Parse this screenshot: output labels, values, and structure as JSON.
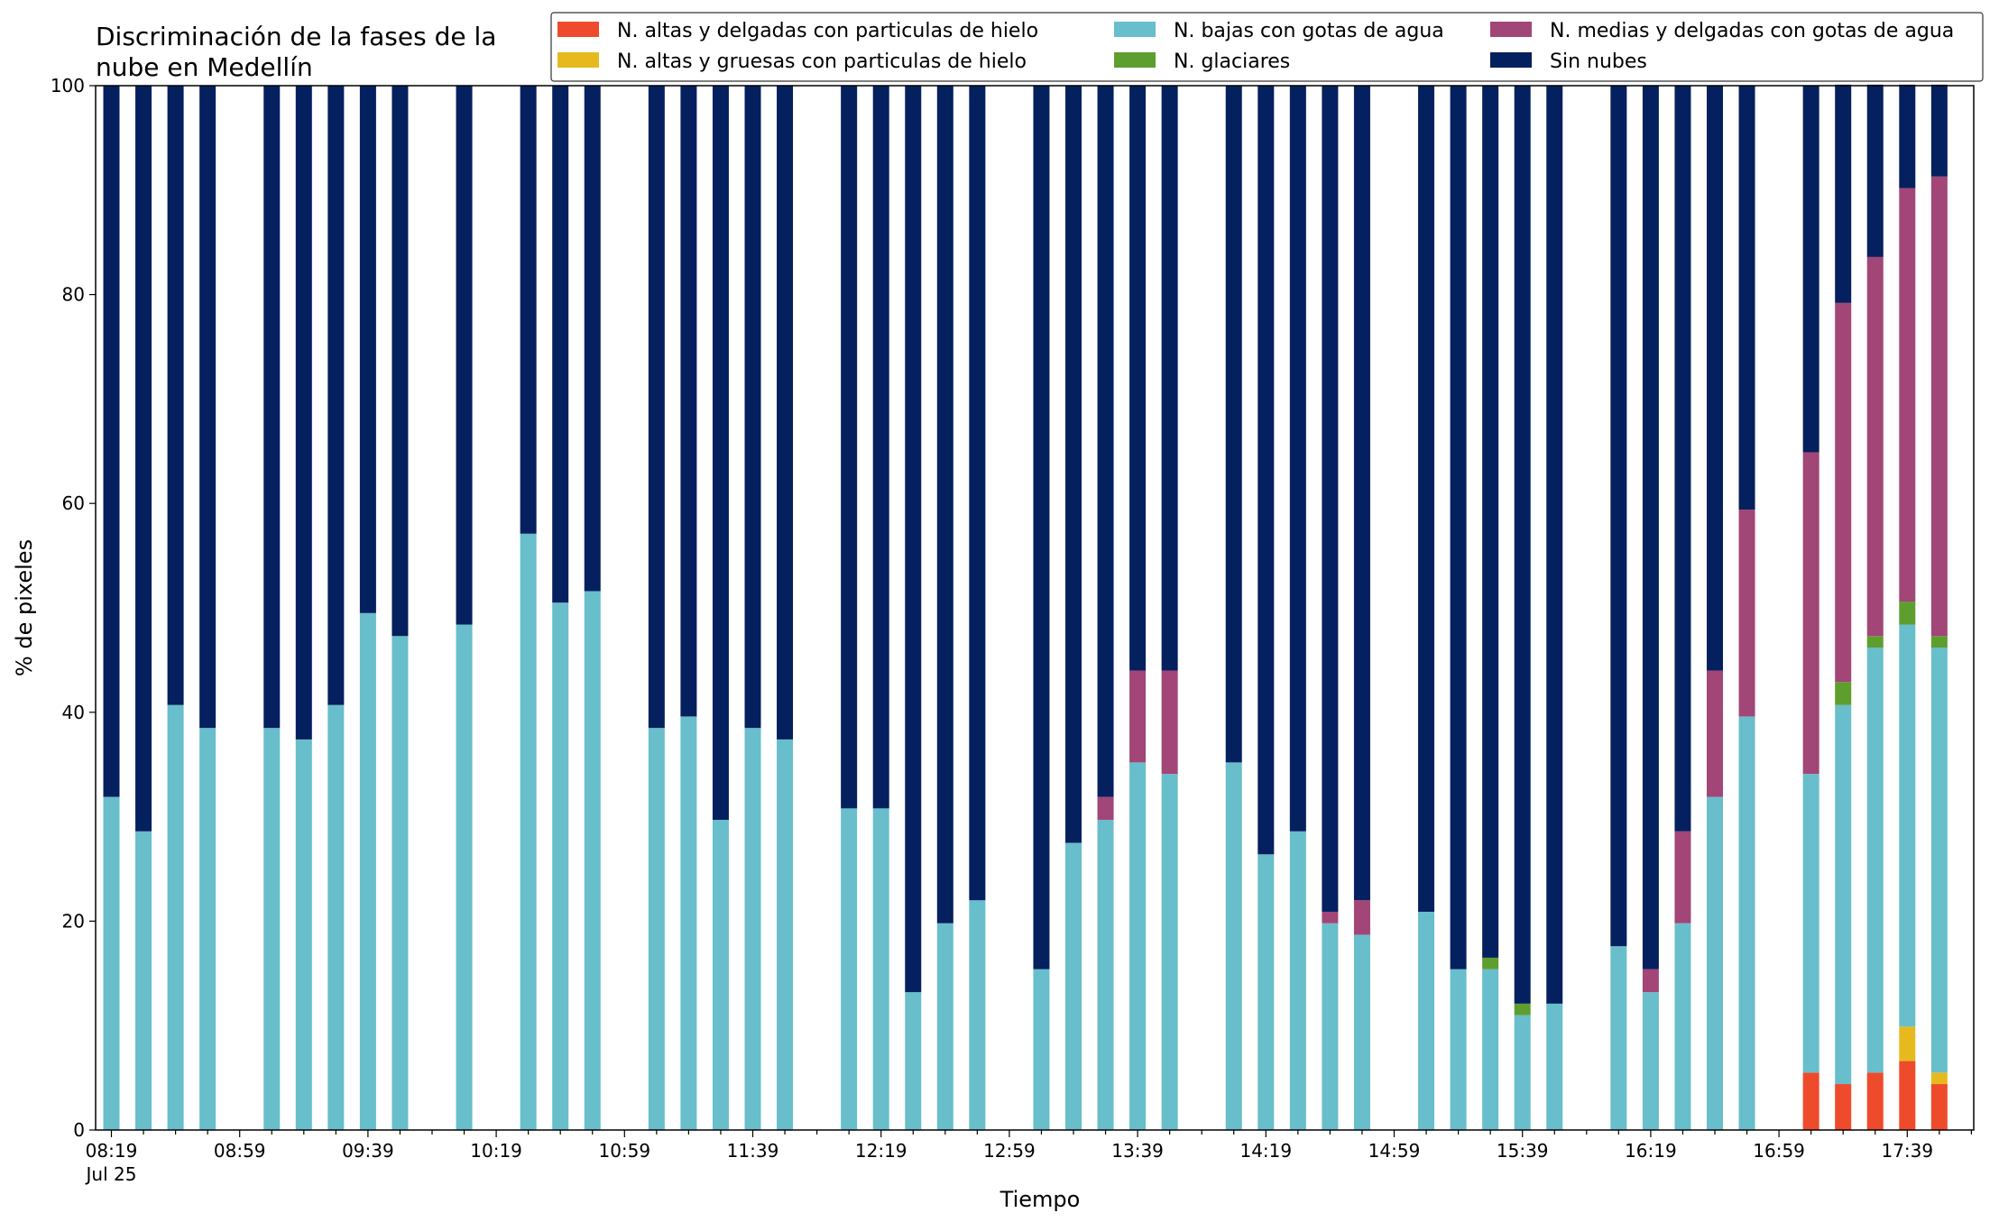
{
  "chart_data": {
    "type": "bar",
    "stacked": true,
    "title": [
      "Discriminación de la fases de la",
      "nube en Medellín"
    ],
    "xlabel": "Tiempo",
    "ylabel": "% de pixeles",
    "ylim": [
      0,
      100
    ],
    "yticks": [
      "0",
      "20",
      "40",
      "60",
      "80",
      "100"
    ],
    "grid": false,
    "legend_position": "top-right",
    "x_tick_labels": [
      "08:19",
      "08:59",
      "09:39",
      "10:19",
      "10:59",
      "11:39",
      "12:19",
      "12:59",
      "13:39",
      "14:19",
      "14:59",
      "15:39",
      "16:19",
      "16:59",
      "17:39"
    ],
    "x_tick_sublabel": "Jul 25",
    "x": [
      "08:19",
      "08:29",
      "08:39",
      "08:49",
      "08:59",
      "09:09",
      "09:19",
      "09:29",
      "09:39",
      "09:49",
      "09:59",
      "10:09",
      "10:19",
      "10:29",
      "10:39",
      "10:49",
      "10:59",
      "11:09",
      "11:19",
      "11:29",
      "11:39",
      "11:49",
      "11:59",
      "12:09",
      "12:19",
      "12:29",
      "12:39",
      "12:49",
      "12:59",
      "13:09",
      "13:19",
      "13:29",
      "13:39",
      "13:49",
      "13:59",
      "14:09",
      "14:19",
      "14:29",
      "14:39",
      "14:49",
      "14:59",
      "15:09",
      "15:19",
      "15:29",
      "15:39",
      "15:49",
      "15:59",
      "16:09",
      "16:19",
      "16:29",
      "16:39",
      "16:49",
      "16:59",
      "17:09",
      "17:19",
      "17:29",
      "17:39",
      "17:49",
      "17:59"
    ],
    "series": [
      {
        "name": "N. altas y delgadas con particulas de hielo",
        "color": "#EE4A2C",
        "values": [
          0,
          0,
          0,
          0,
          null,
          0,
          0,
          0,
          0,
          0,
          null,
          0,
          null,
          0,
          0,
          0,
          null,
          0,
          0,
          0,
          0,
          0,
          null,
          0,
          0,
          0,
          0,
          0,
          null,
          0,
          0,
          0,
          0,
          0,
          null,
          0,
          0,
          0,
          0,
          0,
          null,
          0,
          0,
          0,
          0,
          0,
          null,
          0,
          0,
          0,
          0,
          0,
          null,
          5.5,
          4.4,
          5.5,
          6.6,
          4.4,
          null
        ]
      },
      {
        "name": "N. altas y gruesas con particulas de hielo",
        "color": "#E6BA1E",
        "values": [
          0,
          0,
          0,
          0,
          null,
          0,
          0,
          0,
          0,
          0,
          null,
          0,
          null,
          0,
          0,
          0,
          null,
          0,
          0,
          0,
          0,
          0,
          null,
          0,
          0,
          0,
          0,
          0,
          null,
          0,
          0,
          0,
          0,
          0,
          null,
          0,
          0,
          0,
          0,
          0,
          null,
          0,
          0,
          0,
          0,
          0,
          null,
          0,
          0,
          0,
          0,
          0,
          null,
          0,
          0,
          0,
          3.3,
          1.1,
          null
        ]
      },
      {
        "name": "N. bajas con gotas de agua",
        "color": "#68BECB",
        "values": [
          31.9,
          28.6,
          40.7,
          38.5,
          null,
          38.5,
          37.4,
          40.7,
          49.5,
          47.3,
          null,
          48.4,
          null,
          57.1,
          50.5,
          51.6,
          null,
          38.5,
          39.6,
          29.7,
          38.5,
          37.4,
          null,
          30.8,
          30.8,
          13.2,
          19.8,
          22.0,
          null,
          15.4,
          27.5,
          29.7,
          35.2,
          34.1,
          null,
          35.2,
          26.4,
          28.6,
          19.8,
          18.7,
          null,
          20.9,
          15.4,
          15.4,
          11.0,
          12.1,
          null,
          17.6,
          13.2,
          19.8,
          31.9,
          39.6,
          null,
          28.6,
          36.3,
          40.7,
          38.5,
          40.7,
          null
        ]
      },
      {
        "name": "N. glaciares",
        "color": "#5E9E2E",
        "values": [
          0,
          0,
          0,
          0,
          null,
          0,
          0,
          0,
          0,
          0,
          null,
          0,
          null,
          0,
          0,
          0,
          null,
          0,
          0,
          0,
          0,
          0,
          null,
          0,
          0,
          0,
          0,
          0,
          null,
          0,
          0,
          0,
          0,
          0,
          null,
          0,
          0,
          0,
          0,
          0,
          null,
          0,
          0,
          1.1,
          1.1,
          0,
          null,
          0,
          0,
          0,
          0,
          0,
          null,
          0,
          2.2,
          1.1,
          2.2,
          1.1,
          null
        ]
      },
      {
        "name": "N. medias y delgadas con gotas de agua",
        "color": "#A24577",
        "values": [
          0,
          0,
          0,
          0,
          null,
          0,
          0,
          0,
          0,
          0,
          null,
          0,
          null,
          0,
          0,
          0,
          null,
          0,
          0,
          0,
          0,
          0,
          null,
          0,
          0,
          0,
          0,
          0,
          null,
          0,
          0,
          2.2,
          8.8,
          9.9,
          null,
          0,
          0,
          0,
          1.1,
          3.3,
          null,
          0,
          0,
          0,
          0,
          0,
          null,
          0,
          2.2,
          8.8,
          12.1,
          19.8,
          null,
          30.8,
          36.3,
          36.3,
          39.6,
          44.0,
          null
        ]
      },
      {
        "name": "Sin nubes",
        "color": "#05205E",
        "values": [
          68.1,
          71.4,
          59.3,
          61.5,
          null,
          61.5,
          62.6,
          59.3,
          50.5,
          52.7,
          null,
          51.6,
          null,
          42.9,
          49.5,
          48.4,
          null,
          61.5,
          60.4,
          70.3,
          61.5,
          62.6,
          null,
          69.2,
          69.2,
          86.8,
          80.2,
          78.0,
          null,
          84.6,
          72.5,
          68.1,
          56.0,
          56.0,
          null,
          64.8,
          73.6,
          71.4,
          79.1,
          78.0,
          null,
          79.1,
          84.6,
          83.5,
          87.9,
          87.9,
          null,
          82.4,
          84.6,
          71.4,
          56.0,
          40.6,
          null,
          35.1,
          20.9,
          16.5,
          9.9,
          8.8,
          null
        ]
      }
    ]
  }
}
